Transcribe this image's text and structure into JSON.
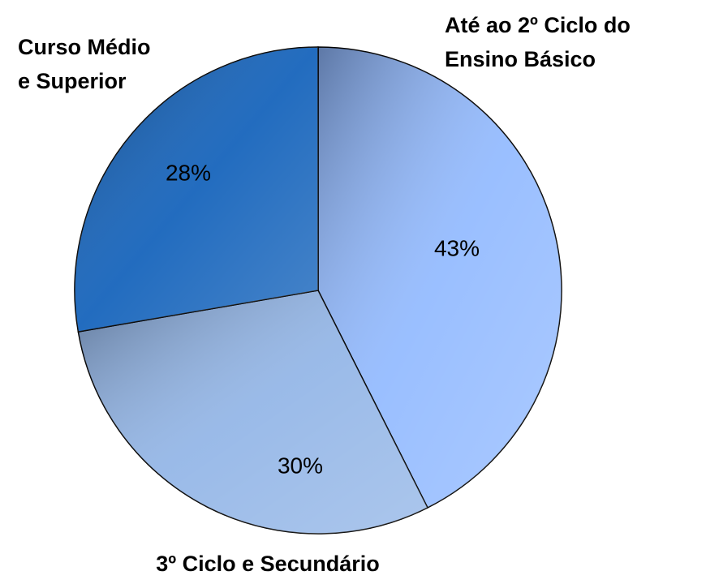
{
  "chart_data": {
    "type": "pie",
    "categories": [
      "Até ao 2º Ciclo do\nEnsino Básico",
      "3º Ciclo e Secundário",
      "Curso Médio\ne Superior"
    ],
    "values": [
      43,
      30,
      28
    ],
    "value_labels": [
      "43%",
      "30%",
      "28%"
    ],
    "colors": [
      "#8fb8ff",
      "#8fb3e6",
      "#0a5cb8"
    ]
  }
}
